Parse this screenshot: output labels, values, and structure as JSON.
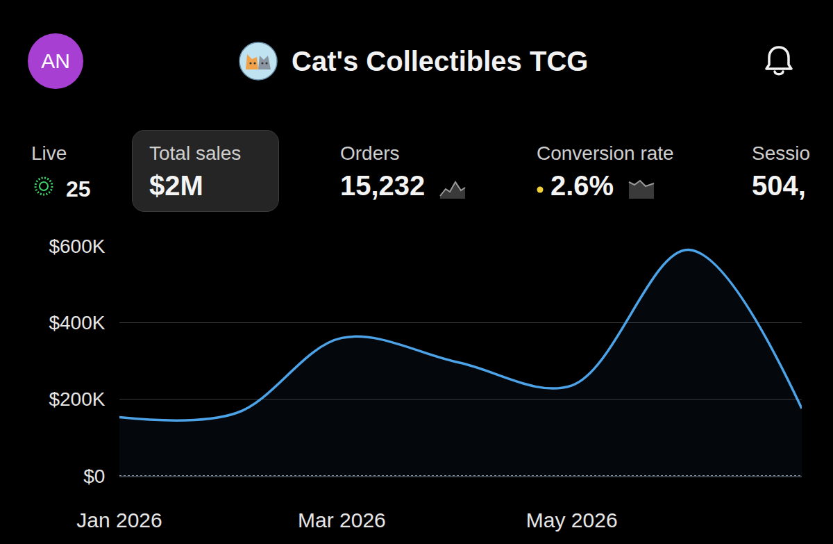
{
  "header": {
    "avatar": "AN",
    "title": "Cat's Collectibles TCG"
  },
  "stats": [
    {
      "label": "Live",
      "value": "25"
    },
    {
      "label": "Total sales",
      "value": "$2M"
    },
    {
      "label": "Orders",
      "value": "15,232"
    },
    {
      "label": "Conversion rate",
      "value": "2.6%"
    },
    {
      "label": "Sessio",
      "value": "504,"
    }
  ],
  "chart_data": {
    "type": "line",
    "x": [
      "2026-01",
      "2026-02",
      "2026-03",
      "2026-04",
      "2026-05",
      "2026-06",
      "2026-07"
    ],
    "values": [
      153000,
      164000,
      360000,
      296000,
      236000,
      590000,
      176000
    ],
    "color": "#4da3e8",
    "xlim": [
      "2026-01",
      "2026-07"
    ],
    "xticks": [
      {
        "value": "2026-01",
        "label": "Jan 2026"
      },
      {
        "value": "2026-03",
        "label": "Mar 2026"
      },
      {
        "value": "2026-05",
        "label": "May 2026"
      }
    ],
    "ylim": [
      0,
      600000
    ],
    "yticks": [
      {
        "value": 0,
        "label": "$0"
      },
      {
        "value": 200000,
        "label": "$200K"
      },
      {
        "value": 400000,
        "label": "$400K"
      },
      {
        "value": 600000,
        "label": "$600K"
      }
    ],
    "grid": true
  }
}
